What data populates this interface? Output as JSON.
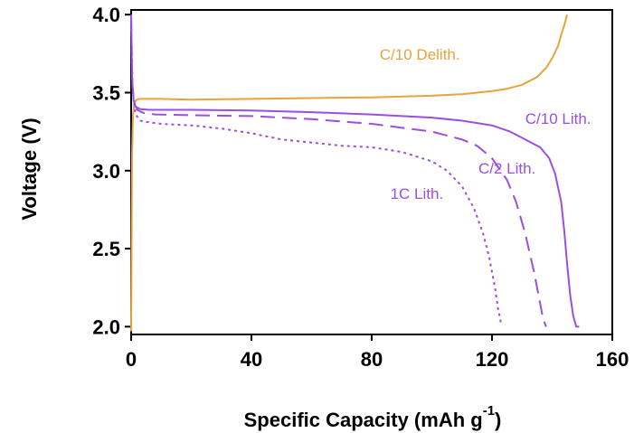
{
  "chart_data": {
    "type": "line",
    "xlabel": "Specific Capacity (mAh g",
    "xlabel_sup": "-1",
    "xlabel_end": ")",
    "ylabel": "Voltage (V)",
    "xlim": [
      0,
      160
    ],
    "ylim": [
      1.95,
      4.03
    ],
    "x_ticks": [
      0,
      40,
      80,
      120,
      160
    ],
    "y_ticks": [
      2.0,
      2.5,
      3.0,
      3.5,
      4.0
    ],
    "x_tick_labels": [
      "0",
      "40",
      "80",
      "120",
      "160"
    ],
    "y_tick_labels": [
      "2.0",
      "2.5",
      "3.0",
      "3.5",
      "4.0"
    ],
    "grid": false,
    "series": [
      {
        "name": "C/10 Delith.",
        "color": "#E8A33D",
        "dash": "solid",
        "x": [
          0,
          0.3,
          0.6,
          1.0,
          1.5,
          2.5,
          5,
          10,
          20,
          40,
          60,
          80,
          100,
          110,
          120,
          125,
          130,
          135,
          138,
          140,
          142,
          143,
          144,
          145
        ],
        "y": [
          1.97,
          3.1,
          3.35,
          3.42,
          3.45,
          3.46,
          3.46,
          3.46,
          3.455,
          3.46,
          3.465,
          3.47,
          3.48,
          3.49,
          3.51,
          3.525,
          3.55,
          3.6,
          3.66,
          3.72,
          3.8,
          3.87,
          3.93,
          4.0
        ]
      },
      {
        "name": "C/10 Lith.",
        "color": "#9B4FE0",
        "dash": "solid",
        "x": [
          0,
          0.3,
          0.8,
          1.5,
          3,
          6,
          10,
          20,
          40,
          60,
          80,
          100,
          110,
          120,
          126,
          130,
          133,
          136,
          139,
          141,
          143,
          144,
          145,
          146,
          147,
          148,
          149
        ],
        "y": [
          4.0,
          3.6,
          3.45,
          3.41,
          3.395,
          3.39,
          3.39,
          3.39,
          3.385,
          3.375,
          3.36,
          3.34,
          3.32,
          3.29,
          3.25,
          3.21,
          3.18,
          3.15,
          3.08,
          2.98,
          2.8,
          2.62,
          2.4,
          2.2,
          2.07,
          2.0,
          2.0
        ]
      },
      {
        "name": "C/2 Lith.",
        "color": "#9B4FE0",
        "dash": "dashed",
        "x": [
          0,
          0.4,
          1.0,
          2,
          4,
          8,
          20,
          40,
          60,
          80,
          100,
          110,
          115,
          120,
          125,
          128,
          131,
          134,
          136,
          137,
          138
        ],
        "y": [
          3.98,
          3.55,
          3.43,
          3.39,
          3.37,
          3.36,
          3.355,
          3.35,
          3.33,
          3.3,
          3.25,
          3.2,
          3.16,
          3.08,
          2.94,
          2.8,
          2.6,
          2.35,
          2.15,
          2.05,
          2.0
        ]
      },
      {
        "name": "1C Lith.",
        "color": "#9B4FE0",
        "dash": "dotted",
        "x": [
          0,
          0.5,
          1.5,
          3,
          6,
          10,
          20,
          30,
          40,
          50,
          60,
          70,
          80,
          90,
          100,
          105,
          110,
          114,
          117,
          119,
          121,
          122,
          123
        ],
        "y": [
          3.96,
          3.5,
          3.36,
          3.32,
          3.31,
          3.3,
          3.29,
          3.27,
          3.24,
          3.2,
          3.18,
          3.16,
          3.15,
          3.12,
          3.06,
          3.0,
          2.9,
          2.76,
          2.6,
          2.45,
          2.25,
          2.12,
          2.02
        ]
      }
    ],
    "annotations": [
      {
        "text": "C/10 Delith.",
        "x": 96,
        "y": 3.71,
        "color": "#E8A33D"
      },
      {
        "text": "C/10 Lith.",
        "x": 142,
        "y": 3.3,
        "color": "#9B4FE0"
      },
      {
        "text": "C/2 Lith.",
        "x": 125,
        "y": 2.98,
        "color": "#9B4FE0"
      },
      {
        "text": "1C Lith.",
        "x": 95,
        "y": 2.82,
        "color": "#9B4FE0"
      }
    ]
  }
}
